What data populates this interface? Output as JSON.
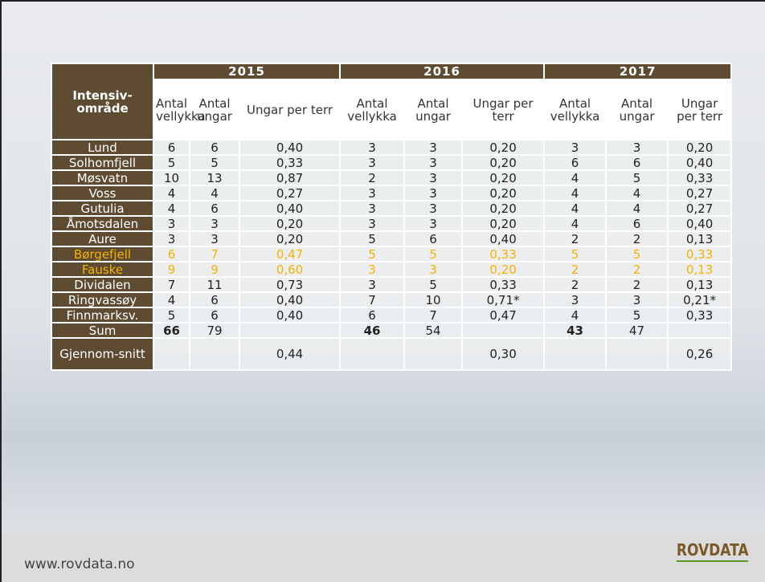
{
  "table": {
    "corner": "Intensiv-område",
    "years": [
      "2015",
      "2016",
      "2017"
    ],
    "columns": [
      "Antal vellykka",
      "Antal ungar",
      "Ungar per terr",
      "Antal vellykka",
      "Antal ungar",
      "Ungar per terr",
      "Antal vellykka",
      "Antal ungar",
      "Ungar per terr"
    ],
    "highlight_color": "#f5b400",
    "rows": [
      {
        "cells": [
          "Lund",
          "6",
          "6",
          "0,40",
          "3",
          "3",
          "0,20",
          "3",
          "3",
          "0,20"
        ]
      },
      {
        "cells": [
          "Solhomfjell",
          "5",
          "5",
          "0,33",
          "3",
          "3",
          "0,20",
          "6",
          "6",
          "0,40"
        ]
      },
      {
        "cells": [
          "Møsvatn",
          "10",
          "13",
          "0,87",
          "2",
          "3",
          "0,20",
          "4",
          "5",
          "0,33"
        ]
      },
      {
        "cells": [
          "Voss",
          "4",
          "4",
          "0,27",
          "3",
          "3",
          "0,20",
          "4",
          "4",
          "0,27"
        ]
      },
      {
        "cells": [
          "Gutulia",
          "4",
          "6",
          "0,40",
          "3",
          "3",
          "0,20",
          "4",
          "4",
          "0,27"
        ]
      },
      {
        "cells": [
          "Åmotsdalen",
          "3",
          "3",
          "0,20",
          "3",
          "3",
          "0,20",
          "4",
          "6",
          "0,40"
        ]
      },
      {
        "cells": [
          "Aure",
          "3",
          "3",
          "0,20",
          "5",
          "6",
          "0,40",
          "2",
          "2",
          "0,13"
        ]
      },
      {
        "cells": [
          "Børgefjell",
          "6",
          "7",
          "0,47",
          "5",
          "5",
          "0,33",
          "5",
          "5",
          "0,33"
        ],
        "highlight": true
      },
      {
        "cells": [
          "Fauske",
          "9",
          "9",
          "0,60",
          "3",
          "3",
          "0,20",
          "2",
          "2",
          "0,13"
        ],
        "highlight": true
      },
      {
        "cells": [
          "Dividalen",
          "7",
          "11",
          "0,73",
          "3",
          "5",
          "0,33",
          "2",
          "2",
          "0,13"
        ]
      },
      {
        "cells": [
          "Ringvassøy",
          "4",
          "6",
          "0,40",
          "7",
          "10",
          "0,71*",
          "3",
          "3",
          "0,21*"
        ]
      },
      {
        "cells": [
          "Finnmarksv.",
          "5",
          "6",
          "0,40",
          "6",
          "7",
          "0,47",
          "4",
          "5",
          "0,33"
        ]
      },
      {
        "cells": [
          "Sum",
          "66",
          "79",
          null,
          "46",
          "54",
          null,
          "43",
          "47",
          null
        ]
      },
      {
        "cells": [
          "Gjennom-snitt",
          null,
          null,
          "0,44",
          null,
          null,
          "0,30",
          null,
          null,
          "0,26"
        ]
      }
    ]
  },
  "footer": {
    "url": "www.rovdata.no",
    "logo": "ROVDATA"
  }
}
